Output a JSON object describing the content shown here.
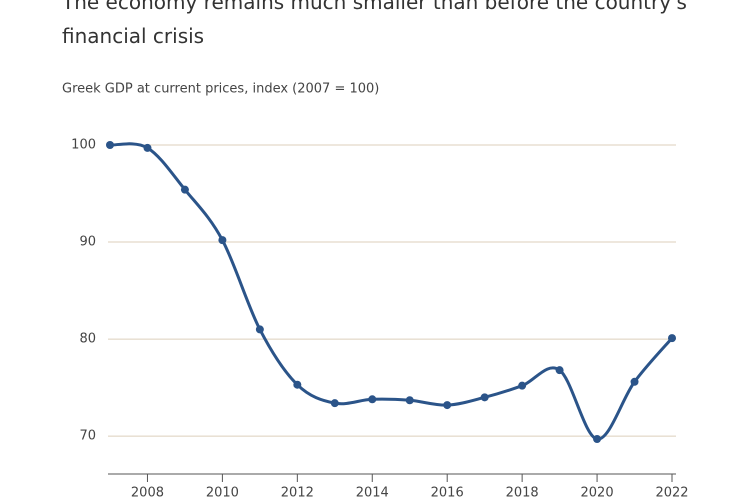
{
  "chart_data": {
    "type": "line",
    "title": "The economy remains much smaller than before the country's financial crisis",
    "subtitle": "Greek GDP at current prices, index (2007 = 100)",
    "x": [
      2007,
      2008,
      2009,
      2010,
      2011,
      2012,
      2013,
      2014,
      2015,
      2016,
      2017,
      2018,
      2019,
      2020,
      2021,
      2022
    ],
    "values": [
      100,
      99.7,
      95.4,
      90.2,
      81.0,
      75.3,
      73.4,
      73.8,
      73.7,
      73.2,
      74.0,
      75.2,
      76.8,
      69.7,
      75.6,
      80.1
    ],
    "color": "#2b5489",
    "xlim": [
      2007,
      2022
    ],
    "xticks": [
      2008,
      2010,
      2012,
      2014,
      2016,
      2018,
      2020,
      2022
    ],
    "ylim": [
      66.1,
      100
    ],
    "yticks": [
      70,
      80,
      90,
      100
    ],
    "grid": true
  }
}
